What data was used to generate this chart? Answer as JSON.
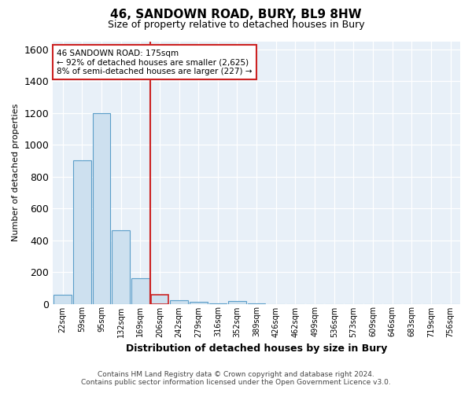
{
  "title": "46, SANDOWN ROAD, BURY, BL9 8HW",
  "subtitle": "Size of property relative to detached houses in Bury",
  "xlabel": "Distribution of detached houses by size in Bury",
  "ylabel": "Number of detached properties",
  "footer_line1": "Contains HM Land Registry data © Crown copyright and database right 2024.",
  "footer_line2": "Contains public sector information licensed under the Open Government Licence v3.0.",
  "annotation_line1": "46 SANDOWN ROAD: 175sqm",
  "annotation_line2": "← 92% of detached houses are smaller (2,625)",
  "annotation_line3": "8% of semi-detached houses are larger (227) →",
  "bar_color": "#cde0ef",
  "bar_edge_color": "#5b9ec9",
  "highlight_bar_edge_color": "#cc2222",
  "vline_color": "#cc2222",
  "annotation_box_edge_color": "#cc2222",
  "bins": [
    "22sqm",
    "59sqm",
    "95sqm",
    "132sqm",
    "169sqm",
    "206sqm",
    "242sqm",
    "279sqm",
    "316sqm",
    "352sqm",
    "389sqm",
    "426sqm",
    "462sqm",
    "499sqm",
    "536sqm",
    "573sqm",
    "609sqm",
    "646sqm",
    "683sqm",
    "719sqm",
    "756sqm"
  ],
  "values": [
    55,
    900,
    1200,
    460,
    160,
    55,
    22,
    10,
    5,
    15,
    5,
    0,
    0,
    0,
    0,
    0,
    0,
    0,
    0,
    0,
    0
  ],
  "highlight_index": 5,
  "vline_position": 4.5,
  "ylim": [
    0,
    1650
  ],
  "yticks": [
    0,
    200,
    400,
    600,
    800,
    1000,
    1200,
    1400,
    1600
  ],
  "background_color": "#ffffff",
  "plot_background_color": "#e8f0f8"
}
